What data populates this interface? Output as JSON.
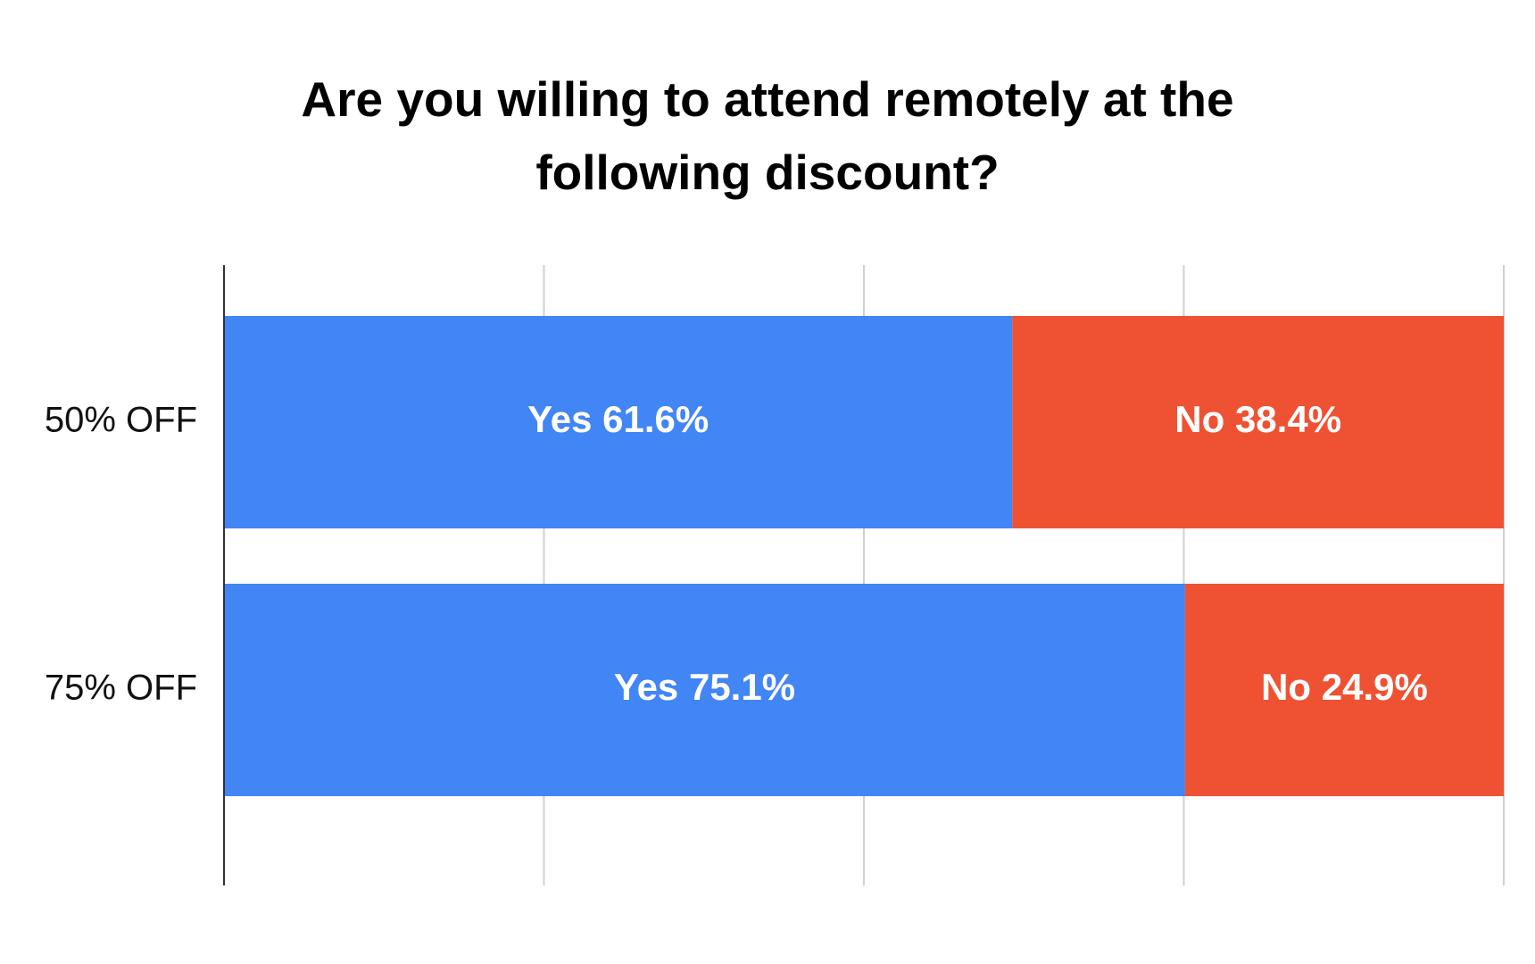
{
  "chart_data": {
    "type": "stacked-bar-horizontal",
    "title": "Are you willing to attend remotely at the following discount?",
    "categories": [
      "50% OFF",
      "75% OFF"
    ],
    "series": [
      {
        "name": "Yes",
        "color": "#4285f4",
        "values": [
          61.6,
          75.1
        ],
        "value_labels": [
          "Yes 61.6%",
          "Yes 75.1%"
        ]
      },
      {
        "name": "No",
        "color": "#ef5233",
        "values": [
          38.4,
          24.9
        ],
        "value_labels": [
          "No 38.4%",
          "No 24.9%"
        ]
      }
    ],
    "xlim": [
      0,
      100
    ],
    "xticks": [
      0,
      25,
      50,
      75,
      100
    ],
    "grid": true
  }
}
